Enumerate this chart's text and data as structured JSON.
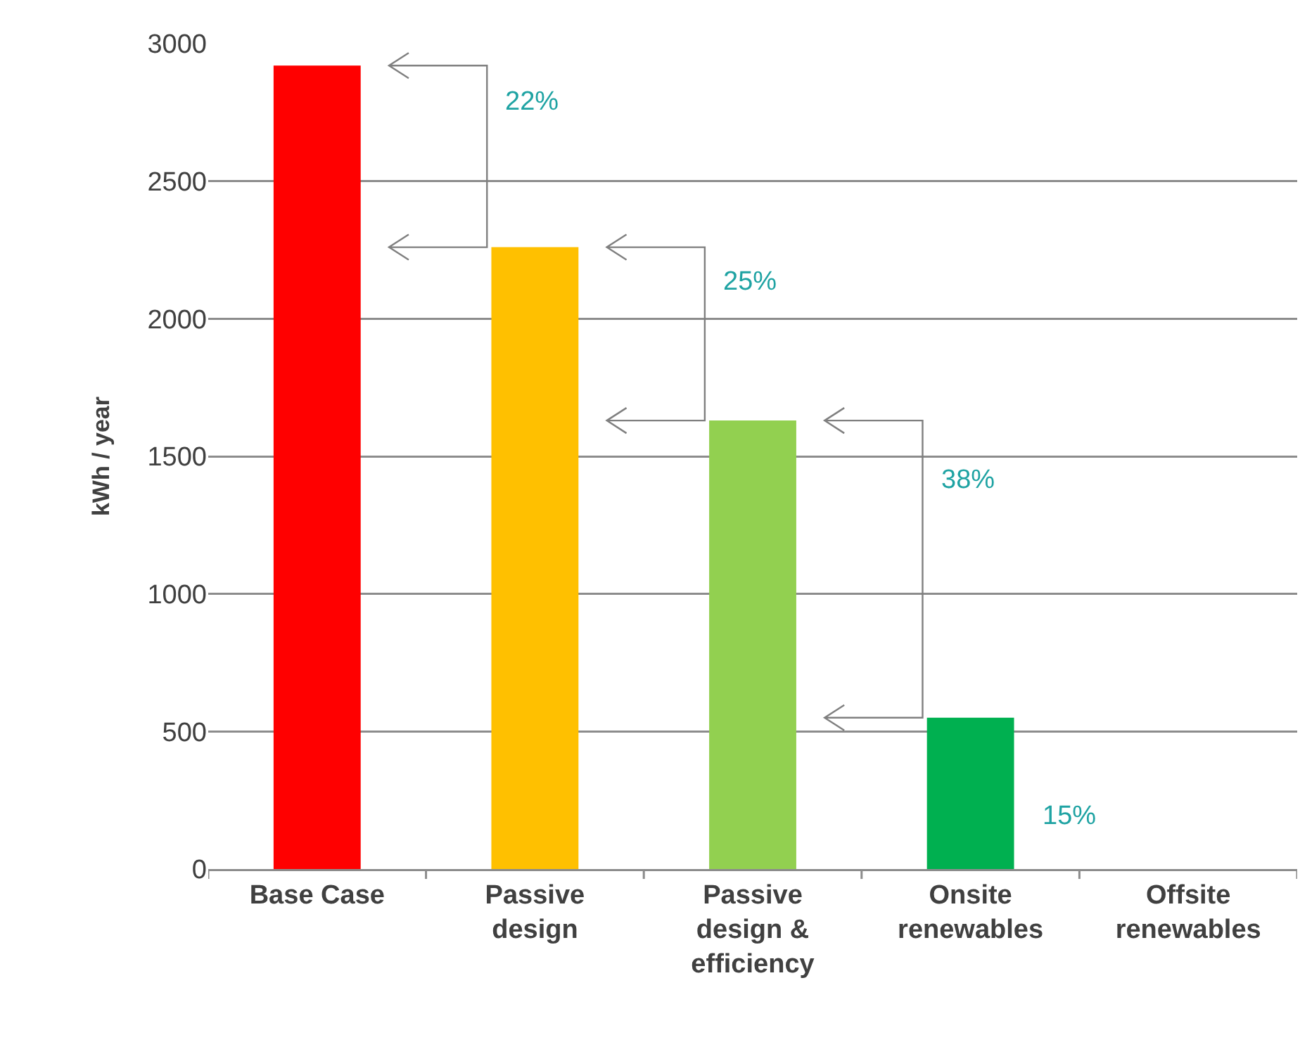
{
  "chart_data": {
    "type": "bar",
    "ylabel": "kWh / year",
    "categories": [
      "Base Case",
      "Passive design",
      "Passive design & efficiency",
      "Onsite renewables",
      "Offsite renewables"
    ],
    "values": [
      2920,
      2260,
      1630,
      550,
      0
    ],
    "colors": [
      "#ff0000",
      "#ffc000",
      "#92d050",
      "#00b050",
      "#00b050"
    ],
    "ylim": [
      0,
      3000
    ],
    "yticks": [
      0,
      500,
      1000,
      1500,
      2000,
      2500,
      3000
    ],
    "grid": "y",
    "annotations": [
      "22%",
      "25%",
      "38%",
      "15%"
    ]
  }
}
